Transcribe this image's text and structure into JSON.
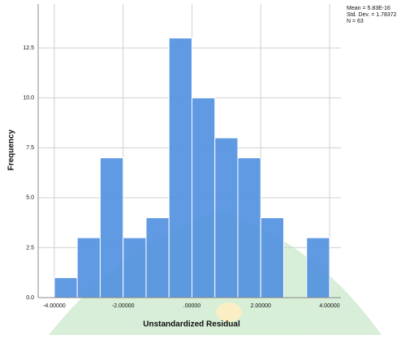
{
  "chart_data": {
    "type": "histogram",
    "x_label": "Unstandardized Residual",
    "y_label": "Frequency",
    "stats": [
      "Mean = 5.83E-16",
      "Std. Dev. = 1.78372",
      "N = 63"
    ],
    "bins": [
      -4.0,
      -3.3333,
      -2.6667,
      -2.0,
      -1.3333,
      -0.6667,
      0.0,
      0.6667,
      1.3333,
      2.0,
      2.6667,
      3.3333,
      4.0
    ],
    "values": [
      1,
      3,
      7,
      3,
      4,
      13,
      10,
      8,
      7,
      4,
      0,
      3
    ],
    "color": "#4f8fe0",
    "xlim": [
      -4.47,
      4.33
    ],
    "ylim": [
      0,
      14.7
    ],
    "xticks": [
      {
        "value": -4,
        "label": "-4.00000"
      },
      {
        "value": -2,
        "label": "-2.00000"
      },
      {
        "value": 0,
        "label": ".00000"
      },
      {
        "value": 2,
        "label": "2.00000"
      },
      {
        "value": 4,
        "label": "4.00000"
      }
    ],
    "yticks": [
      {
        "value": 0,
        "label": "0.0"
      },
      2.5,
      {
        "value": 5,
        "label": "5.0"
      },
      7.5,
      {
        "value": 10,
        "label": "10.0"
      },
      12.5
    ],
    "grid": true
  }
}
